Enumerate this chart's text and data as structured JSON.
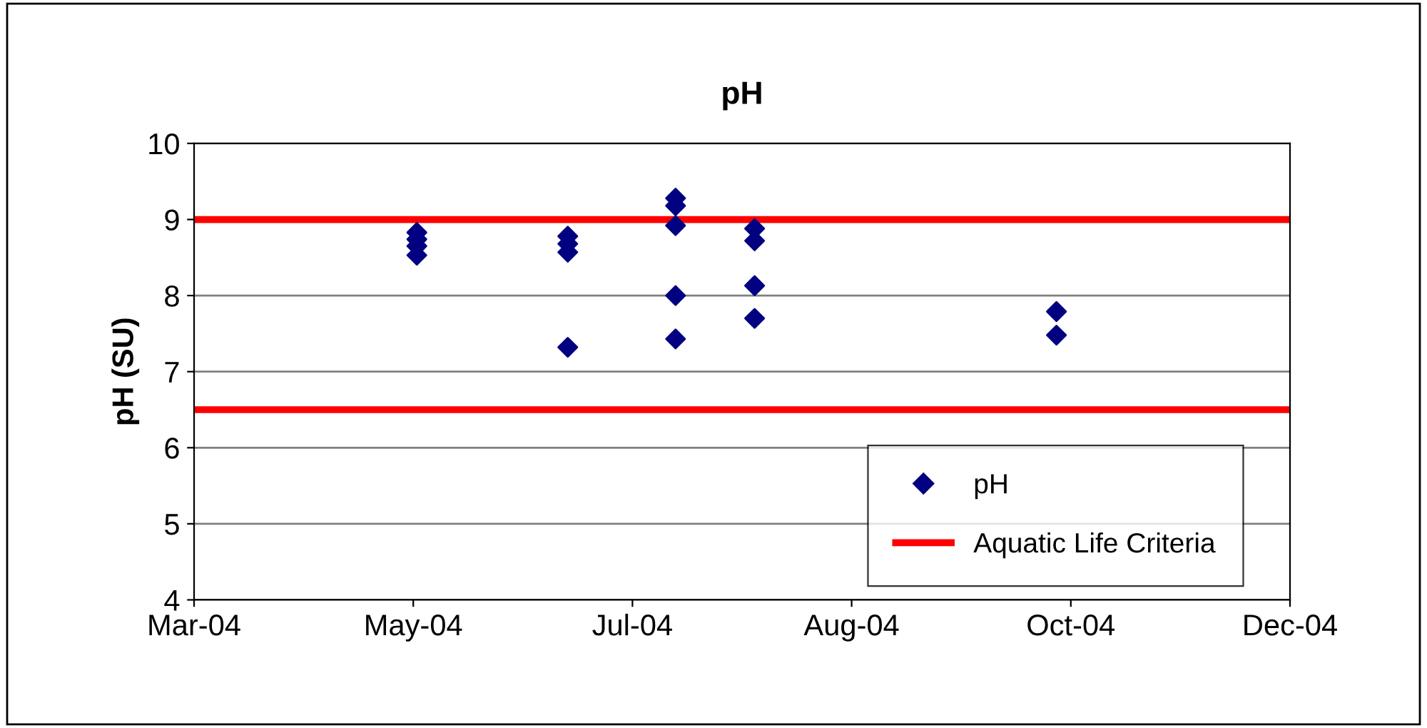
{
  "chart_data": {
    "type": "scatter",
    "title": "pH",
    "ylabel": "pH (SU)",
    "series": [
      {
        "name": "pH",
        "color": "#000080",
        "marker": "diamond",
        "x": [
          "2004-05-02",
          "2004-05-02",
          "2004-05-02",
          "2004-05-02",
          "2004-06-13",
          "2004-06-13",
          "2004-06-13",
          "2004-06-13",
          "2004-07-13",
          "2004-07-13",
          "2004-07-13",
          "2004-07-13",
          "2004-07-13",
          "2004-08-04",
          "2004-08-04",
          "2004-08-04",
          "2004-08-04",
          "2004-10-27",
          "2004-10-27"
        ],
        "values": [
          8.83,
          8.74,
          8.65,
          8.53,
          8.78,
          8.68,
          8.57,
          7.32,
          9.28,
          9.18,
          8.92,
          8.0,
          7.43,
          8.88,
          8.72,
          8.13,
          7.7,
          7.79,
          7.48
        ]
      }
    ],
    "ref_lines": [
      {
        "axis": "y",
        "value": 9,
        "label": "Aquatic Life Criteria",
        "color": "#ff0000"
      },
      {
        "axis": "y",
        "value": 6.5,
        "color": "#ff0000"
      }
    ],
    "xlim": [
      "2004-03-01",
      "2004-12-31"
    ],
    "xticks": [
      {
        "value": "2004-03-01",
        "label": "Mar-04"
      },
      {
        "value": "2004-05-01",
        "label": "May-04"
      },
      {
        "value": "2004-07-01",
        "label": "Jul-04"
      },
      {
        "value": "2004-08-31",
        "label": "Aug-04"
      },
      {
        "value": "2004-10-31",
        "label": "Oct-04"
      },
      {
        "value": "2004-12-31",
        "label": "Dec-04"
      }
    ],
    "ylim": [
      4,
      10
    ],
    "yticks": [
      4,
      5,
      6,
      7,
      8,
      9,
      10
    ],
    "grid": "y",
    "legend": "bottom right"
  }
}
